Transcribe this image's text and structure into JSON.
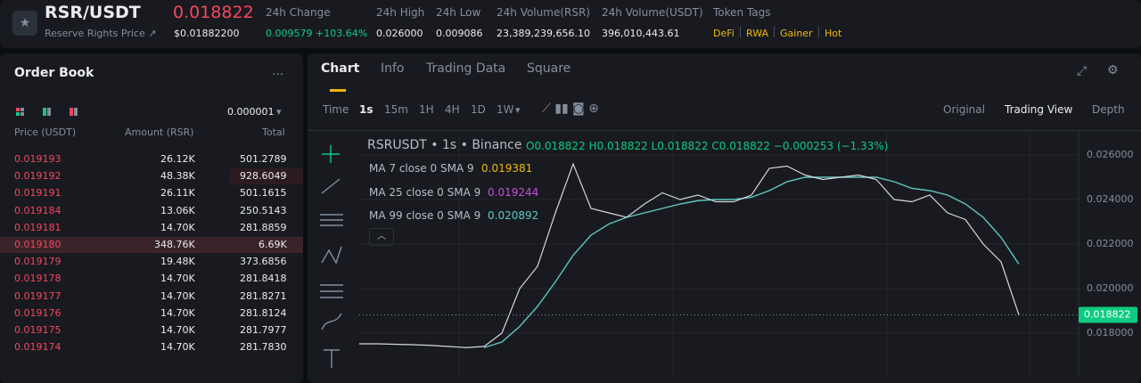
{
  "header": {
    "symbol": "RSR/USDT",
    "subtitle": "Reserve Rights Price ↗",
    "price": "0.018822",
    "price_usd": "$0.01882200",
    "stats": [
      {
        "label": "24h Change",
        "value": "0.009579 +103.64%"
      },
      {
        "label": "24h High",
        "value": "0.026000"
      },
      {
        "label": "24h Low",
        "value": "0.009086"
      },
      {
        "label": "24h Volume(RSR)",
        "value": "23,389,239,656.10"
      },
      {
        "label": "24h Volume(USDT)",
        "value": "396,010,443.61"
      }
    ],
    "tags_label": "Token Tags",
    "tags": [
      "DeFi",
      "RWA",
      "Gainer",
      "Hot"
    ]
  },
  "order_book": {
    "title": "Order Book",
    "more": "...",
    "tick": "0.000001",
    "columns": [
      "Price (USDT)",
      "Amount (RSR)",
      "Total"
    ],
    "rows": [
      [
        "0.019193",
        "26.12K",
        "501.2789"
      ],
      [
        "0.019192",
        "48.38K",
        "928.6049"
      ],
      [
        "0.019191",
        "26.11K",
        "501.1615"
      ],
      [
        "0.019184",
        "13.06K",
        "250.5143"
      ],
      [
        "0.019181",
        "14.70K",
        "281.8859"
      ],
      [
        "0.019180",
        "348.76K",
        "6.69K"
      ],
      [
        "0.019179",
        "19.48K",
        "373.6856"
      ],
      [
        "0.019178",
        "14.70K",
        "281.8418"
      ],
      [
        "0.019177",
        "14.70K",
        "281.8271"
      ],
      [
        "0.019176",
        "14.70K",
        "281.8124"
      ],
      [
        "0.019175",
        "14.70K",
        "281.7977"
      ],
      [
        "0.019174",
        "14.70K",
        "281.7830"
      ]
    ]
  },
  "tabs": [
    "Chart",
    "Info",
    "Trading Data",
    "Square"
  ],
  "intervals": [
    "Time",
    "1s",
    "15m",
    "1H",
    "4H",
    "1D",
    "1W"
  ],
  "views": [
    "Original",
    "Trading View",
    "Depth"
  ],
  "chart_data": {
    "type": "line",
    "title": "RSRUSDT • 1s • Binance",
    "ohlc": "O0.018822 H0.018822 L0.018822 C0.018822 −0.000253 (−1.33%)",
    "color": "#d4d7dc",
    "values": [
      0.01752,
      0.01752,
      0.0175,
      0.01748,
      0.01745,
      0.0174,
      0.01735,
      0.0174,
      0.018,
      0.02,
      0.021,
      0.0234,
      0.0256,
      0.0236,
      0.0234,
      0.0232,
      0.0238,
      0.0243,
      0.024,
      0.0242,
      0.0239,
      0.0239,
      0.0242,
      0.0254,
      0.0255,
      0.0251,
      0.0249,
      0.025,
      0.0251,
      0.0249,
      0.024,
      0.0239,
      0.0242,
      0.0234,
      0.0231,
      0.022,
      0.0212,
      0.01882
    ],
    "indicators": [
      {
        "label": "MA 7 close 0 SMA 9",
        "last": 0.019381,
        "color": "#f0b90b"
      },
      {
        "label": "MA 25 close 0 SMA 9",
        "last": 0.019244,
        "color": "#c54fd6"
      },
      {
        "label": "MA 99 close 0 SMA 9",
        "last": 0.020892,
        "color": "#5ec8c0",
        "values": [
          null,
          null,
          null,
          null,
          null,
          null,
          null,
          0.01735,
          0.0176,
          0.0183,
          0.0192,
          0.0203,
          0.0215,
          0.0224,
          0.0229,
          0.0232,
          0.0234,
          0.0236,
          0.0238,
          0.02395,
          0.024,
          0.024,
          0.0241,
          0.0244,
          0.0248,
          0.025,
          0.025,
          0.025,
          0.025,
          0.025,
          0.0248,
          0.0245,
          0.0244,
          0.0242,
          0.0238,
          0.0232,
          0.0223,
          0.0211
        ]
      }
    ],
    "last_price": 0.018822,
    "ylim": [
      0.01608,
      0.02704
    ],
    "yticks": [
      {
        "value": 0.018,
        "label": "0.018000"
      },
      {
        "value": 0.02,
        "label": "0.020000"
      },
      {
        "value": 0.022,
        "label": "0.022000"
      },
      {
        "value": 0.024,
        "label": "0.024000"
      },
      {
        "value": 0.026,
        "label": "0.026000"
      }
    ]
  }
}
